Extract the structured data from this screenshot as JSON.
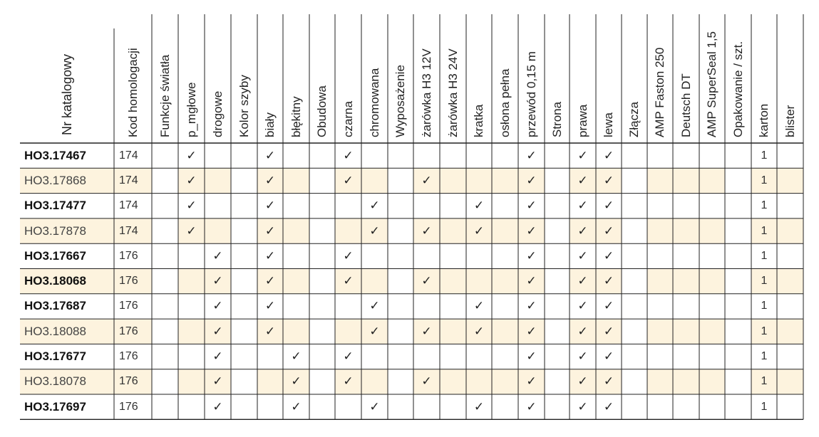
{
  "table": {
    "check_glyph": "✓",
    "shade_color": "#fdf3de",
    "columns": [
      {
        "key": "nr",
        "label": "Nr katalogowy",
        "kind": "data"
      },
      {
        "key": "kod",
        "label": "Kod homologacji",
        "kind": "data"
      },
      {
        "key": "funkcje",
        "label": "Funkcje światła",
        "kind": "section"
      },
      {
        "key": "p_mglowe",
        "label": "p_mgłowe",
        "kind": "data"
      },
      {
        "key": "drogowe",
        "label": "drogowe",
        "kind": "data"
      },
      {
        "key": "kolor",
        "label": "Kolor szyby",
        "kind": "section"
      },
      {
        "key": "bialy",
        "label": "biały",
        "kind": "data"
      },
      {
        "key": "blekitny",
        "label": "błękitny",
        "kind": "data"
      },
      {
        "key": "obudowa",
        "label": "Obudowa",
        "kind": "section"
      },
      {
        "key": "czarna",
        "label": "czarna",
        "kind": "data"
      },
      {
        "key": "chromowana",
        "label": "chromowana",
        "kind": "data"
      },
      {
        "key": "wyposazenie",
        "label": "Wyposażenie",
        "kind": "section"
      },
      {
        "key": "h3_12v",
        "label": "żarówka H3 12V",
        "kind": "data"
      },
      {
        "key": "h3_24v",
        "label": "żarówka H3 24V",
        "kind": "data"
      },
      {
        "key": "kratka",
        "label": "kratka",
        "kind": "data"
      },
      {
        "key": "oslona",
        "label": "osłona pełna",
        "kind": "data"
      },
      {
        "key": "przewod",
        "label": "przewód 0,15 m",
        "kind": "data"
      },
      {
        "key": "strona",
        "label": "Strona",
        "kind": "section"
      },
      {
        "key": "prawa",
        "label": "prawa",
        "kind": "data"
      },
      {
        "key": "lewa",
        "label": "lewa",
        "kind": "data"
      },
      {
        "key": "zlacza",
        "label": "Złącza",
        "kind": "section"
      },
      {
        "key": "amp_faston",
        "label": "AMP Faston 250",
        "kind": "data"
      },
      {
        "key": "deutsch",
        "label": "Deutsch DT",
        "kind": "data"
      },
      {
        "key": "amp_superseal",
        "label": "AMP SuperSeal 1,5",
        "kind": "data"
      },
      {
        "key": "opakowanie",
        "label": "Opakowanie / szt.",
        "kind": "section"
      },
      {
        "key": "karton",
        "label": "karton",
        "kind": "data"
      },
      {
        "key": "blister",
        "label": "blister",
        "kind": "data"
      }
    ],
    "rows": [
      {
        "nr": "HO3.17467",
        "bold": true,
        "shaded": false,
        "kod": "174",
        "checks": [
          "p_mglowe",
          "bialy",
          "czarna",
          "przewod",
          "prawa",
          "lewa"
        ],
        "karton": "1",
        "blister": ""
      },
      {
        "nr": "HO3.17868",
        "bold": false,
        "shaded": true,
        "kod": "174",
        "checks": [
          "p_mglowe",
          "bialy",
          "czarna",
          "h3_12v",
          "przewod",
          "prawa",
          "lewa"
        ],
        "karton": "1",
        "blister": ""
      },
      {
        "nr": "HO3.17477",
        "bold": true,
        "shaded": false,
        "kod": "174",
        "checks": [
          "p_mglowe",
          "bialy",
          "chromowana",
          "kratka",
          "przewod",
          "prawa",
          "lewa"
        ],
        "karton": "1",
        "blister": ""
      },
      {
        "nr": "HO3.17878",
        "bold": false,
        "shaded": true,
        "kod": "174",
        "checks": [
          "p_mglowe",
          "bialy",
          "chromowana",
          "h3_12v",
          "kratka",
          "przewod",
          "prawa",
          "lewa"
        ],
        "karton": "1",
        "blister": ""
      },
      {
        "nr": "HO3.17667",
        "bold": true,
        "shaded": false,
        "kod": "176",
        "checks": [
          "drogowe",
          "bialy",
          "czarna",
          "przewod",
          "prawa",
          "lewa"
        ],
        "karton": "1",
        "blister": ""
      },
      {
        "nr": "HO3.18068",
        "bold": true,
        "shaded": true,
        "kod": "176",
        "checks": [
          "drogowe",
          "bialy",
          "czarna",
          "h3_12v",
          "przewod",
          "prawa",
          "lewa"
        ],
        "karton": "1",
        "blister": ""
      },
      {
        "nr": "HO3.17687",
        "bold": true,
        "shaded": false,
        "kod": "176",
        "checks": [
          "drogowe",
          "bialy",
          "chromowana",
          "kratka",
          "przewod",
          "prawa",
          "lewa"
        ],
        "karton": "1",
        "blister": ""
      },
      {
        "nr": "HO3.18088",
        "bold": false,
        "shaded": true,
        "kod": "176",
        "checks": [
          "drogowe",
          "bialy",
          "chromowana",
          "h3_12v",
          "kratka",
          "przewod",
          "prawa",
          "lewa"
        ],
        "karton": "1",
        "blister": ""
      },
      {
        "nr": "HO3.17677",
        "bold": true,
        "shaded": false,
        "kod": "176",
        "checks": [
          "drogowe",
          "blekitny",
          "czarna",
          "przewod",
          "prawa",
          "lewa"
        ],
        "karton": "1",
        "blister": ""
      },
      {
        "nr": "HO3.18078",
        "bold": false,
        "shaded": true,
        "kod": "176",
        "checks": [
          "drogowe",
          "blekitny",
          "czarna",
          "h3_12v",
          "przewod",
          "prawa",
          "lewa"
        ],
        "karton": "1",
        "blister": ""
      },
      {
        "nr": "HO3.17697",
        "bold": true,
        "shaded": false,
        "kod": "176",
        "checks": [
          "drogowe",
          "blekitny",
          "chromowana",
          "kratka",
          "przewod",
          "prawa",
          "lewa"
        ],
        "karton": "1",
        "blister": ""
      }
    ]
  }
}
